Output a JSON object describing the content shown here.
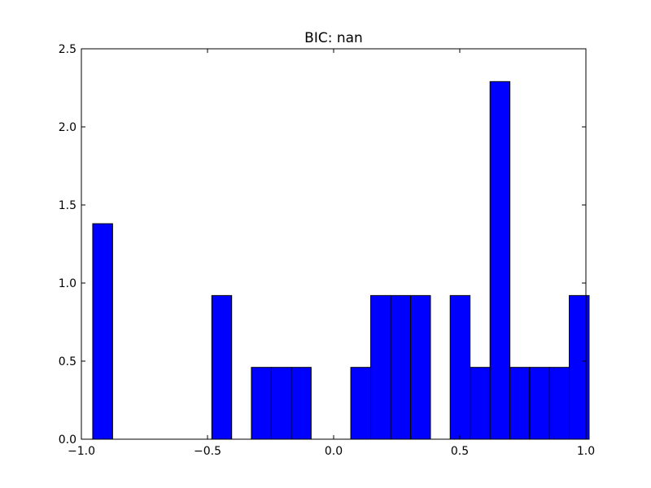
{
  "chart_data": {
    "type": "bar",
    "title": "BIC: nan",
    "xlabel": "",
    "ylabel": "",
    "xlim": [
      -1.0,
      1.0
    ],
    "ylim": [
      0,
      2.5
    ],
    "grid": false,
    "bar_color": "#0000ff",
    "bin_width": 0.0788,
    "bins": [
      {
        "x0": -0.955,
        "value": 1.38
      },
      {
        "x0": -0.483,
        "value": 0.92
      },
      {
        "x0": -0.326,
        "value": 0.46
      },
      {
        "x0": -0.247,
        "value": 0.46
      },
      {
        "x0": -0.168,
        "value": 0.46
      },
      {
        "x0": 0.068,
        "value": 0.46
      },
      {
        "x0": 0.147,
        "value": 0.92
      },
      {
        "x0": 0.226,
        "value": 0.92
      },
      {
        "x0": 0.305,
        "value": 0.92
      },
      {
        "x0": 0.462,
        "value": 0.92
      },
      {
        "x0": 0.541,
        "value": 0.46
      },
      {
        "x0": 0.62,
        "value": 2.29
      },
      {
        "x0": 0.698,
        "value": 0.46
      },
      {
        "x0": 0.777,
        "value": 0.46
      },
      {
        "x0": 0.856,
        "value": 0.46
      },
      {
        "x0": 0.934,
        "value": 0.92
      }
    ],
    "x_ticks": [
      {
        "value": -1.0,
        "label": "−1.0"
      },
      {
        "value": -0.5,
        "label": "−0.5"
      },
      {
        "value": 0.0,
        "label": "0.0"
      },
      {
        "value": 0.5,
        "label": "0.5"
      },
      {
        "value": 1.0,
        "label": "1.0"
      }
    ],
    "y_ticks": [
      {
        "value": 0.0,
        "label": "0.0"
      },
      {
        "value": 0.5,
        "label": "0.5"
      },
      {
        "value": 1.0,
        "label": "1.0"
      },
      {
        "value": 1.5,
        "label": "1.5"
      },
      {
        "value": 2.0,
        "label": "2.0"
      },
      {
        "value": 2.5,
        "label": "2.5"
      }
    ]
  }
}
